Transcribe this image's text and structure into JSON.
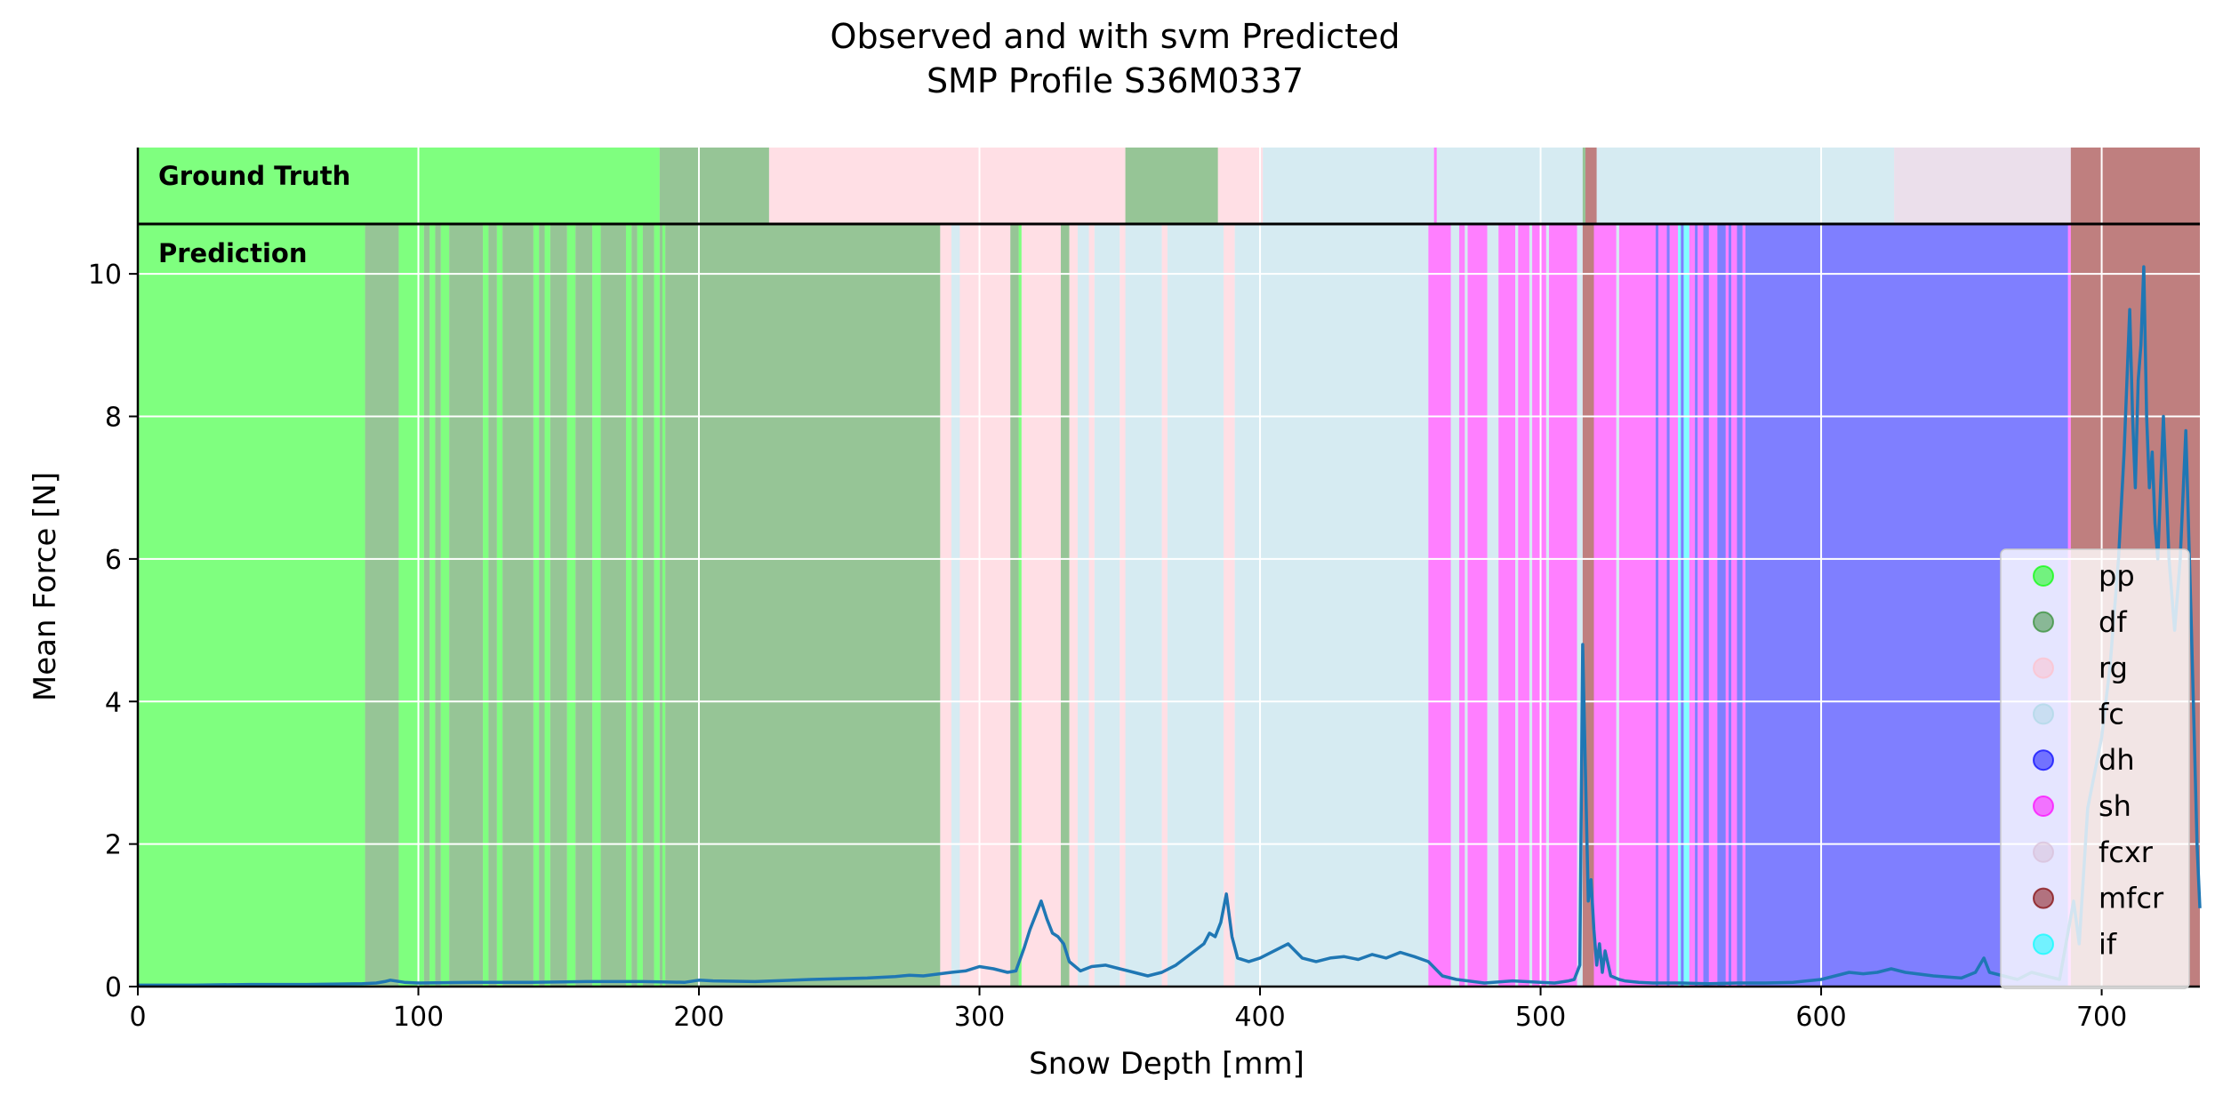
{
  "chart_data": {
    "type": "line",
    "title": [
      "Observed and with svm Predicted",
      "SMP Profile S36M0337"
    ],
    "xlabel": "Snow Depth [mm]",
    "ylabel": "Mean Force [N]",
    "xlim": [
      0,
      735
    ],
    "ylim": [
      0,
      10.7
    ],
    "xticks": [
      0,
      100,
      200,
      300,
      400,
      500,
      600,
      700
    ],
    "yticks": [
      0,
      2,
      4,
      6,
      8,
      10
    ],
    "grid": true,
    "legend_position": "lower-right",
    "strip_labels": {
      "ground_truth": "Ground Truth",
      "prediction": "Prediction"
    },
    "classes": [
      {
        "name": "pp",
        "color": "#00ff00"
      },
      {
        "name": "df",
        "color": "#2e8b2e"
      },
      {
        "name": "rg",
        "color": "#ffc0cb"
      },
      {
        "name": "fc",
        "color": "#add8e6"
      },
      {
        "name": "dh",
        "color": "#0000ff"
      },
      {
        "name": "sh",
        "color": "#ff00ff"
      },
      {
        "name": "fcxr",
        "color": "#d8bfd8"
      },
      {
        "name": "mfcr",
        "color": "#800000"
      },
      {
        "name": "if",
        "color": "#00ffff"
      }
    ],
    "ground_truth": [
      {
        "start": 0,
        "end": 186,
        "cls": "pp"
      },
      {
        "start": 186,
        "end": 225,
        "cls": "df"
      },
      {
        "start": 225,
        "end": 352,
        "cls": "rg"
      },
      {
        "start": 352,
        "end": 385,
        "cls": "df"
      },
      {
        "start": 385,
        "end": 401,
        "cls": "rg"
      },
      {
        "start": 401,
        "end": 462,
        "cls": "fc"
      },
      {
        "start": 462,
        "end": 463,
        "cls": "sh"
      },
      {
        "start": 463,
        "end": 515,
        "cls": "fc"
      },
      {
        "start": 515,
        "end": 516,
        "cls": "df"
      },
      {
        "start": 516,
        "end": 520,
        "cls": "mfcr"
      },
      {
        "start": 520,
        "end": 626,
        "cls": "fc"
      },
      {
        "start": 626,
        "end": 689,
        "cls": "fcxr"
      },
      {
        "start": 689,
        "end": 735,
        "cls": "mfcr"
      }
    ],
    "prediction": [
      {
        "start": 0,
        "end": 81,
        "cls": "pp"
      },
      {
        "start": 81,
        "end": 93,
        "cls": "df"
      },
      {
        "start": 93,
        "end": 102,
        "cls": "pp"
      },
      {
        "start": 102,
        "end": 104,
        "cls": "df"
      },
      {
        "start": 104,
        "end": 106,
        "cls": "pp"
      },
      {
        "start": 106,
        "end": 108,
        "cls": "df"
      },
      {
        "start": 108,
        "end": 111,
        "cls": "pp"
      },
      {
        "start": 111,
        "end": 123,
        "cls": "df"
      },
      {
        "start": 123,
        "end": 125,
        "cls": "pp"
      },
      {
        "start": 125,
        "end": 128,
        "cls": "df"
      },
      {
        "start": 128,
        "end": 130,
        "cls": "pp"
      },
      {
        "start": 130,
        "end": 141,
        "cls": "df"
      },
      {
        "start": 141,
        "end": 143,
        "cls": "pp"
      },
      {
        "start": 143,
        "end": 145,
        "cls": "df"
      },
      {
        "start": 145,
        "end": 147,
        "cls": "pp"
      },
      {
        "start": 147,
        "end": 153,
        "cls": "df"
      },
      {
        "start": 153,
        "end": 156,
        "cls": "pp"
      },
      {
        "start": 156,
        "end": 162,
        "cls": "df"
      },
      {
        "start": 162,
        "end": 165,
        "cls": "pp"
      },
      {
        "start": 165,
        "end": 174,
        "cls": "df"
      },
      {
        "start": 174,
        "end": 176,
        "cls": "pp"
      },
      {
        "start": 176,
        "end": 178,
        "cls": "df"
      },
      {
        "start": 178,
        "end": 180,
        "cls": "pp"
      },
      {
        "start": 180,
        "end": 184,
        "cls": "df"
      },
      {
        "start": 184,
        "end": 186,
        "cls": "pp"
      },
      {
        "start": 186,
        "end": 187,
        "cls": "df"
      },
      {
        "start": 187,
        "end": 188,
        "cls": "pp"
      },
      {
        "start": 188,
        "end": 286,
        "cls": "df"
      },
      {
        "start": 286,
        "end": 290,
        "cls": "rg"
      },
      {
        "start": 290,
        "end": 293,
        "cls": "fc"
      },
      {
        "start": 293,
        "end": 311,
        "cls": "rg"
      },
      {
        "start": 311,
        "end": 314,
        "cls": "df"
      },
      {
        "start": 314,
        "end": 315,
        "cls": "pp"
      },
      {
        "start": 315,
        "end": 329,
        "cls": "rg"
      },
      {
        "start": 329,
        "end": 332,
        "cls": "df"
      },
      {
        "start": 332,
        "end": 335,
        "cls": "rg"
      },
      {
        "start": 335,
        "end": 339,
        "cls": "fc"
      },
      {
        "start": 339,
        "end": 341,
        "cls": "rg"
      },
      {
        "start": 341,
        "end": 350,
        "cls": "fc"
      },
      {
        "start": 350,
        "end": 352,
        "cls": "rg"
      },
      {
        "start": 352,
        "end": 365,
        "cls": "fc"
      },
      {
        "start": 365,
        "end": 367,
        "cls": "rg"
      },
      {
        "start": 367,
        "end": 387,
        "cls": "fc"
      },
      {
        "start": 387,
        "end": 391,
        "cls": "rg"
      },
      {
        "start": 391,
        "end": 460,
        "cls": "fc"
      },
      {
        "start": 460,
        "end": 468,
        "cls": "sh"
      },
      {
        "start": 468,
        "end": 471,
        "cls": "fc"
      },
      {
        "start": 471,
        "end": 473,
        "cls": "sh"
      },
      {
        "start": 473,
        "end": 474,
        "cls": "fc"
      },
      {
        "start": 474,
        "end": 481,
        "cls": "sh"
      },
      {
        "start": 481,
        "end": 485,
        "cls": "fc"
      },
      {
        "start": 485,
        "end": 491,
        "cls": "sh"
      },
      {
        "start": 491,
        "end": 492,
        "cls": "fc"
      },
      {
        "start": 492,
        "end": 496,
        "cls": "sh"
      },
      {
        "start": 496,
        "end": 497,
        "cls": "fc"
      },
      {
        "start": 497,
        "end": 502,
        "cls": "sh"
      },
      {
        "start": 502,
        "end": 503,
        "cls": "fc"
      },
      {
        "start": 503,
        "end": 513,
        "cls": "sh"
      },
      {
        "start": 513,
        "end": 515,
        "cls": "fc"
      },
      {
        "start": 515,
        "end": 519,
        "cls": "mfcr"
      },
      {
        "start": 519,
        "end": 527,
        "cls": "sh"
      },
      {
        "start": 527,
        "end": 528,
        "cls": "fc"
      },
      {
        "start": 528,
        "end": 541,
        "cls": "sh"
      },
      {
        "start": 541,
        "end": 542,
        "cls": "dh"
      },
      {
        "start": 542,
        "end": 545,
        "cls": "sh"
      },
      {
        "start": 545,
        "end": 546,
        "cls": "dh"
      },
      {
        "start": 546,
        "end": 549,
        "cls": "sh"
      },
      {
        "start": 549,
        "end": 550,
        "cls": "if"
      },
      {
        "start": 550,
        "end": 551,
        "cls": "dh"
      },
      {
        "start": 551,
        "end": 553,
        "cls": "if"
      },
      {
        "start": 553,
        "end": 555,
        "cls": "sh"
      },
      {
        "start": 555,
        "end": 556,
        "cls": "dh"
      },
      {
        "start": 556,
        "end": 558,
        "cls": "sh"
      },
      {
        "start": 558,
        "end": 560,
        "cls": "dh"
      },
      {
        "start": 560,
        "end": 563,
        "cls": "sh"
      },
      {
        "start": 563,
        "end": 566,
        "cls": "dh"
      },
      {
        "start": 566,
        "end": 567,
        "cls": "sh"
      },
      {
        "start": 567,
        "end": 568,
        "cls": "dh"
      },
      {
        "start": 568,
        "end": 570,
        "cls": "sh"
      },
      {
        "start": 570,
        "end": 572,
        "cls": "dh"
      },
      {
        "start": 572,
        "end": 573,
        "cls": "sh"
      },
      {
        "start": 573,
        "end": 688,
        "cls": "dh"
      },
      {
        "start": 688,
        "end": 689,
        "cls": "sh"
      },
      {
        "start": 689,
        "end": 735,
        "cls": "mfcr"
      }
    ],
    "force_profile": {
      "x": [
        0,
        20,
        40,
        60,
        80,
        85,
        88,
        90,
        95,
        100,
        120,
        140,
        160,
        180,
        195,
        200,
        205,
        220,
        240,
        260,
        270,
        275,
        280,
        290,
        295,
        300,
        305,
        310,
        313,
        316,
        318,
        320,
        322,
        324,
        326,
        328,
        330,
        332,
        336,
        340,
        345,
        350,
        355,
        360,
        365,
        370,
        375,
        380,
        382,
        384,
        386,
        388,
        390,
        392,
        396,
        400,
        405,
        410,
        415,
        420,
        425,
        430,
        435,
        440,
        445,
        450,
        455,
        460,
        465,
        470,
        480,
        490,
        500,
        505,
        510,
        512,
        514,
        515,
        516,
        517,
        518,
        519,
        520,
        521,
        522,
        523,
        525,
        528,
        530,
        535,
        540,
        550,
        560,
        570,
        580,
        590,
        600,
        605,
        610,
        615,
        620,
        625,
        630,
        640,
        650,
        655,
        658,
        660,
        665,
        670,
        675,
        680,
        685,
        690,
        692,
        695,
        700,
        703,
        706,
        708,
        710,
        711,
        712,
        713,
        714,
        715,
        716,
        717,
        718,
        719,
        720,
        721,
        722,
        724,
        726,
        728,
        730,
        732,
        733,
        734,
        735
      ],
      "y": [
        0.02,
        0.02,
        0.03,
        0.03,
        0.04,
        0.05,
        0.07,
        0.09,
        0.06,
        0.05,
        0.06,
        0.06,
        0.07,
        0.07,
        0.06,
        0.09,
        0.08,
        0.07,
        0.1,
        0.12,
        0.14,
        0.16,
        0.15,
        0.2,
        0.22,
        0.28,
        0.25,
        0.2,
        0.22,
        0.55,
        0.8,
        1.0,
        1.2,
        0.95,
        0.75,
        0.7,
        0.6,
        0.35,
        0.22,
        0.28,
        0.3,
        0.25,
        0.2,
        0.15,
        0.2,
        0.3,
        0.45,
        0.6,
        0.75,
        0.7,
        0.9,
        1.3,
        0.7,
        0.4,
        0.35,
        0.4,
        0.5,
        0.6,
        0.4,
        0.35,
        0.4,
        0.42,
        0.38,
        0.45,
        0.4,
        0.48,
        0.42,
        0.35,
        0.15,
        0.1,
        0.05,
        0.08,
        0.06,
        0.05,
        0.08,
        0.1,
        0.3,
        4.8,
        3.0,
        1.2,
        1.5,
        0.8,
        0.3,
        0.6,
        0.2,
        0.5,
        0.15,
        0.1,
        0.08,
        0.06,
        0.05,
        0.05,
        0.04,
        0.05,
        0.05,
        0.06,
        0.1,
        0.15,
        0.2,
        0.18,
        0.2,
        0.25,
        0.2,
        0.15,
        0.12,
        0.2,
        0.4,
        0.2,
        0.15,
        0.1,
        0.2,
        0.15,
        0.1,
        1.2,
        0.6,
        2.5,
        3.5,
        4.5,
        6.0,
        7.5,
        9.5,
        8.0,
        7.0,
        8.5,
        9.0,
        10.1,
        8.0,
        7.0,
        7.5,
        6.5,
        6.0,
        7.0,
        8.0,
        6.0,
        5.0,
        6.0,
        7.8,
        5.0,
        3.5,
        2.0,
        1.1
      ]
    }
  }
}
